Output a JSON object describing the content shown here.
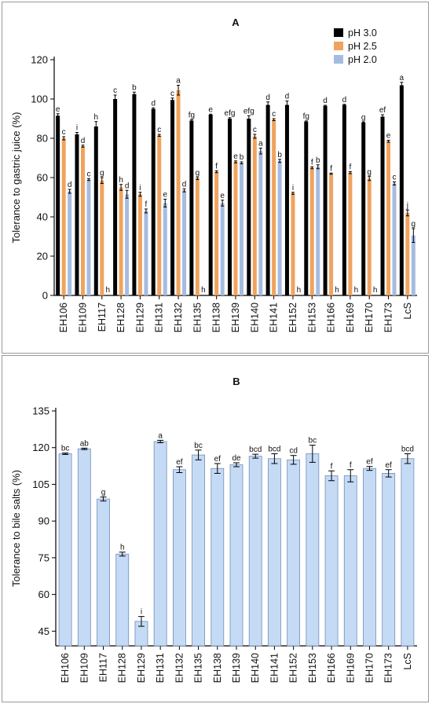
{
  "chart_data": [
    {
      "type": "bar",
      "title": "A",
      "ylabel": "Tolerance to gastric juice (%)",
      "ylim": [
        0,
        120
      ],
      "yticks": [
        0,
        20,
        40,
        60,
        80,
        100,
        120
      ],
      "legend_position": "top-right",
      "categories": [
        "EH106",
        "EH109",
        "EH117",
        "EH128",
        "EH129",
        "EH131",
        "EH132",
        "EH135",
        "EH138",
        "EH139",
        "EH140",
        "EH141",
        "EH152",
        "EH153",
        "EH166",
        "EH169",
        "EH170",
        "EH173",
        "LcS"
      ],
      "series": [
        {
          "name": "pH 3.0",
          "color": "#000000",
          "values": [
            91.5,
            82,
            86,
            100,
            102.5,
            95,
            99.5,
            89,
            92,
            90,
            90,
            97,
            97,
            88.5,
            96.5,
            97,
            88,
            91,
            107
          ],
          "errors": [
            1,
            1,
            2.5,
            2,
            1,
            0.5,
            1,
            0.5,
            0.3,
            0.5,
            1.5,
            1.5,
            2,
            0.3,
            0.3,
            0.3,
            0.3,
            1,
            1.5
          ],
          "labels": [
            "e",
            "i",
            "h",
            "c",
            "b",
            "d",
            "c",
            "fg",
            "e",
            "efg",
            "efg",
            "d",
            "d",
            "fg",
            "d",
            "d",
            "g",
            "ef",
            "a"
          ]
        },
        {
          "name": "pH 2.5",
          "color": "#f0a35e",
          "values": [
            80,
            76,
            58.5,
            55,
            51.5,
            81.5,
            104.5,
            59.5,
            63,
            68,
            81,
            89.5,
            52,
            65,
            62,
            62.5,
            59.5,
            78.5,
            42
          ],
          "errors": [
            0.8,
            0.5,
            1.5,
            1.5,
            1,
            0.5,
            2.5,
            0.5,
            0.5,
            0.5,
            1,
            0.5,
            0.5,
            0.5,
            0.3,
            0.5,
            1,
            0.5,
            1.5
          ],
          "labels": [
            "c",
            "d",
            "g",
            "h",
            "i",
            "c",
            "a",
            "g",
            "f",
            "e",
            "c",
            "c",
            "i",
            "f",
            "f",
            "f",
            "g",
            "e",
            "j"
          ]
        },
        {
          "name": "pH 2.0",
          "color": "#a5bce0",
          "values": [
            53,
            59,
            0,
            51.5,
            43,
            47,
            53.5,
            0,
            47,
            67.5,
            73.5,
            68.5,
            0,
            65.5,
            0,
            0,
            0,
            57,
            30.5
          ],
          "errors": [
            1,
            0.5,
            0,
            2,
            1,
            2,
            0.8,
            0,
            1.5,
            0.5,
            1.5,
            0.8,
            0,
            1,
            0,
            0,
            0,
            0.8,
            3.5
          ],
          "labels": [
            "d",
            "c",
            "h",
            "d",
            "f",
            "e",
            "d",
            "h",
            "e",
            "b",
            "a",
            "b",
            "h",
            "b",
            "h",
            "h",
            "h",
            "c",
            "g"
          ]
        }
      ]
    },
    {
      "type": "bar",
      "title": "B",
      "ylabel": "Tolerance to bile salts  (%)",
      "ylim": [
        39,
        135
      ],
      "yticks": [
        45,
        60,
        75,
        90,
        105,
        120,
        135
      ],
      "categories": [
        "EH106",
        "EH109",
        "EH117",
        "EH128",
        "EH129",
        "EH131",
        "EH132",
        "EH135",
        "EH138",
        "EH139",
        "EH140",
        "EH141",
        "EH152",
        "EH153",
        "EH166",
        "EH169",
        "EH170",
        "EH173",
        "LcS"
      ],
      "series": [
        {
          "color": "#c5daf5",
          "values": [
            117.5,
            119.5,
            99,
            76.5,
            49,
            122.5,
            111,
            117,
            111.5,
            113,
            116.5,
            115.5,
            115,
            117.5,
            108.5,
            108.5,
            111.5,
            109.5,
            115.5
          ],
          "errors": [
            0.3,
            0.3,
            0.8,
            0.8,
            2,
            0.5,
            1.2,
            2,
            2,
            0.8,
            0.8,
            2,
            1.8,
            3.5,
            2,
            2.5,
            0.8,
            1.5,
            2
          ],
          "labels": [
            "bc",
            "ab",
            "g",
            "h",
            "i",
            "a",
            "ef",
            "bc",
            "ef",
            "de",
            "bcd",
            "bcd",
            "cd",
            "bc",
            "f",
            "f",
            "ef",
            "ef",
            "bcd"
          ]
        }
      ]
    }
  ]
}
